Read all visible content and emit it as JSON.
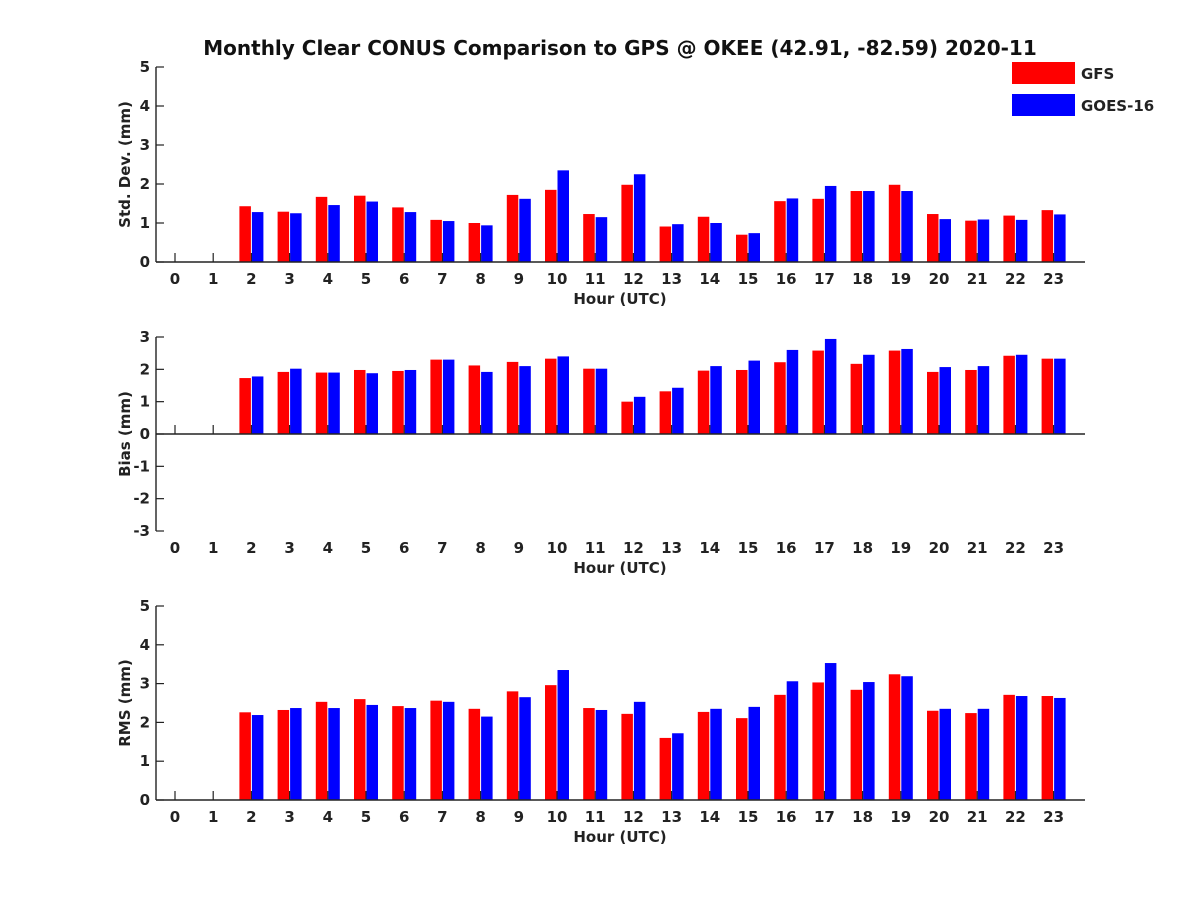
{
  "chart_data": {
    "title": "Monthly Clear CONUS Comparison to GPS @ OKEE (42.91, -82.59) 2020-11",
    "legend": {
      "placement": "top-right",
      "entries": [
        {
          "name": "GFS",
          "color": "#ff0000"
        },
        {
          "name": "GOES-16",
          "color": "#0000ff"
        }
      ]
    },
    "panels": [
      {
        "type": "bar",
        "ylabel": "Std. Dev. (mm)",
        "xlabel": "Hour (UTC)",
        "ylim": [
          0,
          5
        ],
        "yticks": [
          0,
          1,
          2,
          3,
          4,
          5
        ],
        "categories": [
          "0",
          "1",
          "2",
          "3",
          "4",
          "5",
          "6",
          "7",
          "8",
          "9",
          "10",
          "11",
          "12",
          "13",
          "14",
          "15",
          "16",
          "17",
          "18",
          "19",
          "20",
          "21",
          "22",
          "23"
        ],
        "series": [
          {
            "name": "GFS",
            "color": "#ff0000",
            "values": [
              null,
              null,
              1.43,
              1.29,
              1.67,
              1.7,
              1.4,
              1.08,
              1.0,
              1.72,
              1.85,
              1.23,
              1.98,
              0.91,
              1.16,
              0.7,
              1.56,
              1.62,
              1.82,
              1.98,
              1.23,
              1.06,
              1.19,
              1.33
            ]
          },
          {
            "name": "GOES-16",
            "color": "#0000ff",
            "values": [
              null,
              null,
              1.28,
              1.25,
              1.46,
              1.55,
              1.28,
              1.05,
              0.94,
              1.62,
              2.35,
              1.15,
              2.25,
              0.97,
              1.0,
              0.74,
              1.63,
              1.95,
              1.82,
              1.82,
              1.1,
              1.09,
              1.08,
              1.22
            ]
          }
        ]
      },
      {
        "type": "bar",
        "ylabel": "Bias (mm)",
        "xlabel": "Hour (UTC)",
        "ylim": [
          -3,
          3
        ],
        "yticks": [
          -3,
          -2,
          -1,
          0,
          1,
          2,
          3
        ],
        "categories": [
          "0",
          "1",
          "2",
          "3",
          "4",
          "5",
          "6",
          "7",
          "8",
          "9",
          "10",
          "11",
          "12",
          "13",
          "14",
          "15",
          "16",
          "17",
          "18",
          "19",
          "20",
          "21",
          "22",
          "23"
        ],
        "series": [
          {
            "name": "GFS",
            "color": "#ff0000",
            "values": [
              null,
              null,
              1.73,
              1.92,
              1.9,
              1.98,
              1.95,
              2.3,
              2.12,
              2.23,
              2.33,
              2.02,
              1.0,
              1.32,
              1.96,
              1.98,
              2.22,
              2.58,
              2.17,
              2.58,
              1.92,
              1.98,
              2.42,
              2.33
            ]
          },
          {
            "name": "GOES-16",
            "color": "#0000ff",
            "values": [
              null,
              null,
              1.78,
              2.02,
              1.9,
              1.88,
              1.98,
              2.3,
              1.92,
              2.1,
              2.4,
              2.02,
              1.15,
              1.43,
              2.1,
              2.27,
              2.6,
              2.94,
              2.45,
              2.63,
              2.07,
              2.1,
              2.45,
              2.33
            ]
          }
        ]
      },
      {
        "type": "bar",
        "ylabel": "RMS (mm)",
        "xlabel": "Hour (UTC)",
        "ylim": [
          0,
          5
        ],
        "yticks": [
          0,
          1,
          2,
          3,
          4,
          5
        ],
        "categories": [
          "0",
          "1",
          "2",
          "3",
          "4",
          "5",
          "6",
          "7",
          "8",
          "9",
          "10",
          "11",
          "12",
          "13",
          "14",
          "15",
          "16",
          "17",
          "18",
          "19",
          "20",
          "21",
          "22",
          "23"
        ],
        "series": [
          {
            "name": "GFS",
            "color": "#ff0000",
            "values": [
              null,
              null,
              2.26,
              2.32,
              2.53,
              2.6,
              2.42,
              2.56,
              2.35,
              2.8,
              2.96,
              2.37,
              2.22,
              1.6,
              2.27,
              2.11,
              2.71,
              3.03,
              2.84,
              3.24,
              2.3,
              2.24,
              2.71,
              2.68
            ]
          },
          {
            "name": "GOES-16",
            "color": "#0000ff",
            "values": [
              null,
              null,
              2.19,
              2.37,
              2.37,
              2.45,
              2.37,
              2.53,
              2.15,
              2.65,
              3.35,
              2.32,
              2.53,
              1.72,
              2.35,
              2.4,
              3.06,
              3.53,
              3.04,
              3.19,
              2.35,
              2.35,
              2.68,
              2.63
            ]
          }
        ]
      }
    ]
  }
}
